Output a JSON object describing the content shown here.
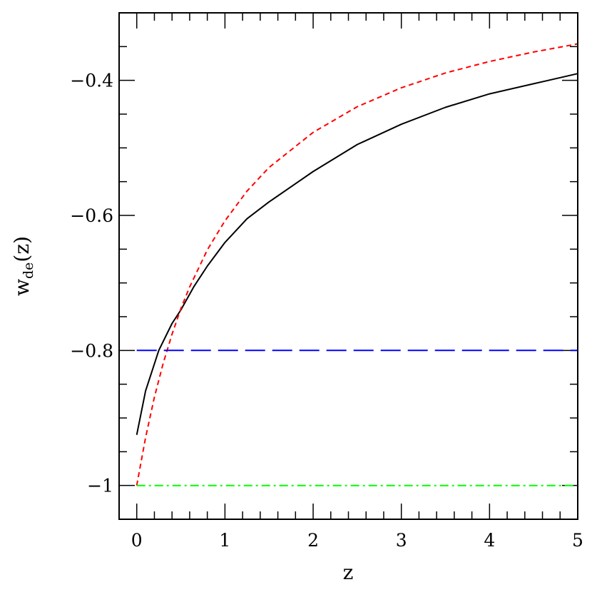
{
  "chart_data": {
    "type": "line",
    "title": "",
    "xlabel": "z",
    "ylabel_main": "w",
    "ylabel_sub": "de",
    "ylabel_tail": "(z)",
    "xlim": [
      -0.2,
      5
    ],
    "ylim": [
      -1.05,
      -0.3
    ],
    "x_major_ticks": [
      0,
      1,
      2,
      3,
      4,
      5
    ],
    "x_tick_labels": [
      "0",
      "1",
      "2",
      "3",
      "4",
      "5"
    ],
    "x_minor_step": 0.2,
    "y_major_ticks": [
      -1,
      -0.8,
      -0.6,
      -0.4
    ],
    "y_tick_labels": [
      "−1",
      "−0.8",
      "−0.6",
      "−0.4"
    ],
    "y_minor_step": 0.05,
    "grid": false,
    "legend": "none",
    "series": [
      {
        "color": "#000000",
        "style": "solid",
        "x": [
          0,
          0.1,
          0.25,
          0.4,
          0.5,
          0.65,
          0.8,
          1,
          1.25,
          1.5,
          2,
          2.5,
          3,
          3.5,
          4,
          4.5,
          5
        ],
        "y": [
          -0.925,
          -0.86,
          -0.8,
          -0.76,
          -0.74,
          -0.705,
          -0.675,
          -0.64,
          -0.605,
          -0.58,
          -0.535,
          -0.495,
          -0.465,
          -0.44,
          -0.42,
          -0.405,
          -0.39
        ]
      },
      {
        "color": "#ff0000",
        "style": "short-dash",
        "x": [
          0,
          0.1,
          0.2,
          0.3,
          0.4,
          0.5,
          0.6,
          0.8,
          1,
          1.25,
          1.5,
          2,
          2.5,
          3,
          3.5,
          4,
          4.5,
          5
        ],
        "y": [
          -1,
          -0.929,
          -0.869,
          -0.819,
          -0.776,
          -0.738,
          -0.706,
          -0.651,
          -0.608,
          -0.564,
          -0.529,
          -0.477,
          -0.439,
          -0.411,
          -0.389,
          -0.372,
          -0.358,
          -0.346
        ]
      },
      {
        "color": "#0000ff",
        "style": "long-dash",
        "x": [
          0,
          5
        ],
        "y": [
          -0.8,
          -0.8
        ]
      },
      {
        "color": "#00ff00",
        "style": "dash-dot",
        "x": [
          0,
          5
        ],
        "y": [
          -1,
          -1
        ]
      }
    ]
  }
}
